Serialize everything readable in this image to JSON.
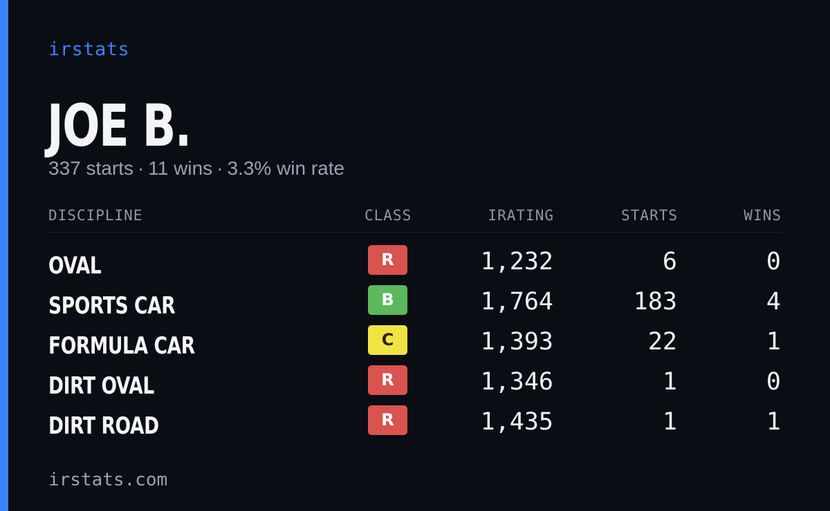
{
  "brand": "irstats",
  "player": {
    "name": "JOE B.",
    "starts_text": "337 starts",
    "wins_text": "11 wins",
    "win_rate_text": "3.3% win rate",
    "separator": "·"
  },
  "table": {
    "headers": {
      "discipline": "DISCIPLINE",
      "class": "CLASS",
      "irating": "IRATING",
      "starts": "STARTS",
      "wins": "WINS"
    },
    "rows": [
      {
        "discipline": "OVAL",
        "class": "R",
        "class_color": "#d9534f",
        "irating": "1,232",
        "starts": "6",
        "wins": "0"
      },
      {
        "discipline": "SPORTS CAR",
        "class": "B",
        "class_color": "#5cb85c",
        "irating": "1,764",
        "starts": "183",
        "wins": "4"
      },
      {
        "discipline": "FORMULA CAR",
        "class": "C",
        "class_color": "#f0e442",
        "irating": "1,393",
        "starts": "22",
        "wins": "1"
      },
      {
        "discipline": "DIRT OVAL",
        "class": "R",
        "class_color": "#d9534f",
        "irating": "1,346",
        "starts": "1",
        "wins": "0"
      },
      {
        "discipline": "DIRT ROAD",
        "class": "R",
        "class_color": "#d9534f",
        "irating": "1,435",
        "starts": "1",
        "wins": "1"
      }
    ]
  },
  "footer": {
    "domain": "irstats.com"
  },
  "colors": {
    "background": "#0a0d14",
    "accent": "#3b82f6",
    "muted_text": "#98a2b3"
  }
}
